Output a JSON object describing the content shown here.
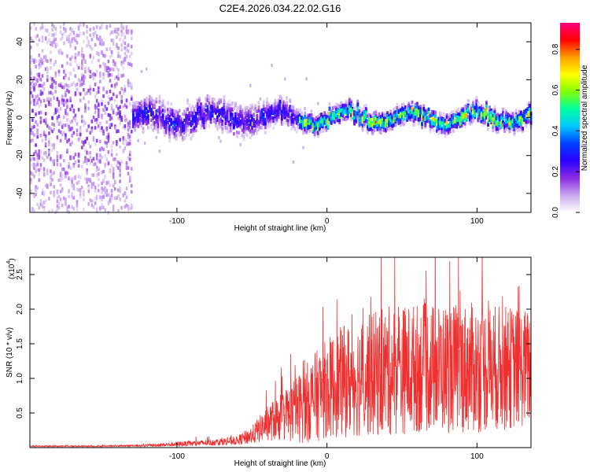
{
  "title": "C2E4.2026.034.22.02.G16",
  "chart_data": [
    {
      "type": "heatmap",
      "title": "C2E4.2026.034.22.02.G16",
      "xlabel": "Height of straight line (km)",
      "ylabel": "Frequency (Hz)",
      "xlim": [
        -198,
        136
      ],
      "ylim": [
        -50,
        50
      ],
      "xticks": [
        -100,
        0,
        100
      ],
      "yticks": [
        -40,
        -20,
        0,
        20,
        40
      ],
      "colorbar": {
        "label": "Normalized spectral amplitude",
        "range": [
          0,
          0.93
        ],
        "ticks": [
          0.0,
          0.2,
          0.4,
          0.6,
          0.8
        ],
        "tick_labels": [
          "0.0",
          "0.2",
          "0.4",
          "0.6",
          "0.8"
        ],
        "colormap": [
          "#ffffff",
          "#c9a8f0",
          "#8a2be2",
          "#2b00ff",
          "#0040ff",
          "#00c8ff",
          "#00ffa0",
          "#80ff00",
          "#ffff00",
          "#ffa000",
          "#ff0000",
          "#ff0080"
        ]
      },
      "ridge": {
        "description_values_hz": "center frequency ~0 Hz across heights",
        "center_freq": 0,
        "strong_from_km": -20,
        "noise_to_km": -130
      }
    },
    {
      "type": "line",
      "xlabel": "Height of straight line (km)",
      "ylabel": "SNR (10 * v/v)",
      "y_multiplier": "(x10",
      "y_multiplier_exp": "4",
      "y_multiplier_close": ")",
      "xlim": [
        -198,
        136
      ],
      "ylim": [
        0,
        2.75
      ],
      "xticks": [
        -100,
        0,
        100
      ],
      "yticks": [
        0.5,
        1.0,
        1.5,
        2.0,
        2.5
      ],
      "ytick_labels": [
        "0.5",
        "1.0",
        "1.5",
        "2.0",
        "2.5"
      ],
      "series_color": "#ee3030",
      "envelope_km": [
        -198,
        -150,
        -120,
        -100,
        -80,
        -60,
        -50,
        -40,
        -30,
        -20,
        -10,
        0,
        10,
        20,
        40,
        60,
        80,
        100,
        120,
        136
      ],
      "envelope_mean": [
        0.02,
        0.02,
        0.03,
        0.05,
        0.07,
        0.1,
        0.18,
        0.35,
        0.45,
        0.55,
        0.7,
        0.85,
        0.95,
        1.0,
        1.1,
        1.15,
        1.15,
        1.15,
        1.15,
        1.15
      ],
      "envelope_spread": [
        0.01,
        0.01,
        0.02,
        0.04,
        0.05,
        0.07,
        0.15,
        0.28,
        0.4,
        0.55,
        0.7,
        0.8,
        0.9,
        0.95,
        1.05,
        1.05,
        1.05,
        1.05,
        1.0,
        0.95
      ]
    }
  ],
  "tick_text": {
    "x": [
      "-100",
      "0",
      "100"
    ],
    "y_top": [
      "-40",
      "-20",
      "0",
      "20",
      "40"
    ]
  }
}
